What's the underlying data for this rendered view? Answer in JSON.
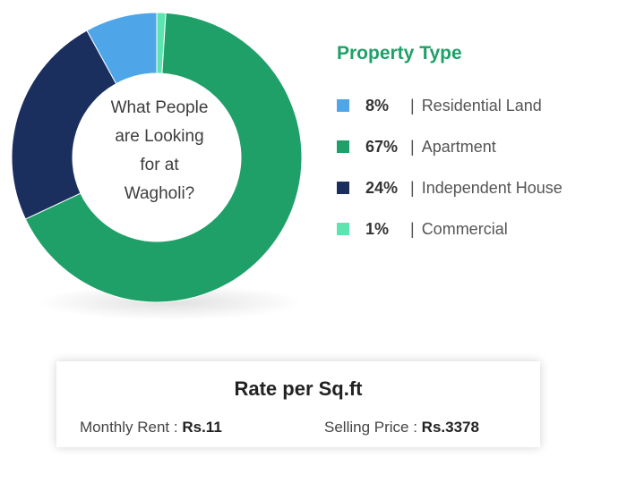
{
  "chart_data": {
    "type": "pie",
    "title": "Property Type",
    "center_text": [
      "What People",
      "are Looking",
      "for at",
      "Wagholi?"
    ],
    "slices": [
      {
        "label": "Residential Land",
        "value": 8,
        "display": "8%",
        "color": "#4ea6e8"
      },
      {
        "label": "Apartment",
        "value": 67,
        "display": "67%",
        "color": "#1fa068"
      },
      {
        "label": "Independent House",
        "value": 24,
        "display": "24%",
        "color": "#1b2f5e"
      },
      {
        "label": "Commercial",
        "value": 1,
        "display": "1%",
        "color": "#5de5b1"
      }
    ]
  },
  "rate": {
    "title": "Rate per Sq.ft",
    "rent_label": "Monthly Rent :",
    "rent_value": "Rs.11",
    "sell_label": "Selling Price :",
    "sell_value": "Rs.3378"
  }
}
